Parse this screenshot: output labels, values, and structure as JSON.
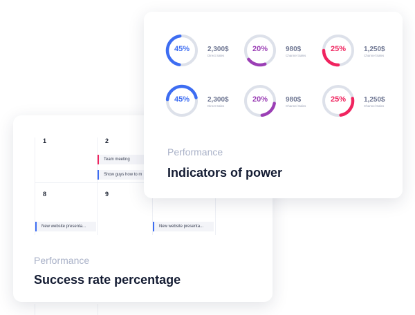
{
  "calendar_card": {
    "days": [
      "1",
      "2",
      "8",
      "9"
    ],
    "events": [
      {
        "text": "Team meeting",
        "color": "#f0245f"
      },
      {
        "text": "Show guys how to m",
        "color": "#3d6df2"
      },
      {
        "text": "New website presenta...",
        "color": "#3d6df2"
      },
      {
        "text": "New website presenta...",
        "color": "#3d6df2"
      }
    ],
    "subtitle": "Performance",
    "title": "Success rate percentage"
  },
  "indicators_card": {
    "subtitle": "Performance",
    "title": "Indicators of power",
    "track_color": "#dde1ea",
    "donuts": [
      {
        "percent": 45,
        "label_pct": "45%",
        "value": "2,300$",
        "label": "Direct Sales",
        "color": "#3d6df2"
      },
      {
        "percent": 20,
        "label_pct": "20%",
        "value": "980$",
        "label": "Channel Sales",
        "color": "#9b3fb5"
      },
      {
        "percent": 25,
        "label_pct": "25%",
        "value": "1,250$",
        "label": "Channel Sales",
        "color": "#f0245f"
      },
      {
        "percent": 45,
        "label_pct": "45%",
        "value": "2,300$",
        "label": "Direct Sales",
        "color": "#3d6df2"
      },
      {
        "percent": 20,
        "label_pct": "20%",
        "value": "980$",
        "label": "Channel Sales",
        "color": "#9b3fb5"
      },
      {
        "percent": 25,
        "label_pct": "25%",
        "value": "1,250$",
        "label": "Channel Sales",
        "color": "#f0245f"
      }
    ]
  }
}
